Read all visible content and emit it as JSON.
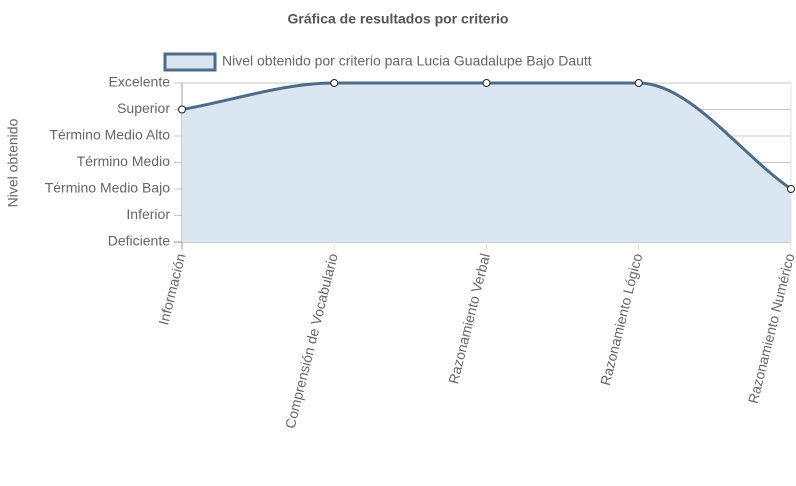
{
  "chart_data": {
    "type": "line",
    "title": "Gráfica de resultados por criterio",
    "y_label": "Nivel obtenido",
    "categories": [
      "Información",
      "Comprensión de Vocabulario",
      "Razonamiento Verbal",
      "Razonamiento Lógico",
      "Razonamiento Numérico"
    ],
    "series": [
      {
        "name": "Nivel obtenido por criterio para Lucia Guadalupe Bajo Dautt",
        "color": "#4e6b87",
        "fill": "#dae7f3",
        "values": [
          5,
          6,
          6,
          6,
          2
        ]
      }
    ],
    "ylim": [
      0,
      6
    ],
    "yticks": [
      {
        "value": 0,
        "label": "Deficiente"
      },
      {
        "value": 1,
        "label": "Inferior"
      },
      {
        "value": 2,
        "label": "Término Medio Bajo"
      },
      {
        "value": 3,
        "label": "Término Medio"
      },
      {
        "value": 4,
        "label": "Término Medio Alto"
      },
      {
        "value": 5,
        "label": "Superior"
      },
      {
        "value": 6,
        "label": "Excelente"
      }
    ],
    "grid": true,
    "legend": "top"
  }
}
